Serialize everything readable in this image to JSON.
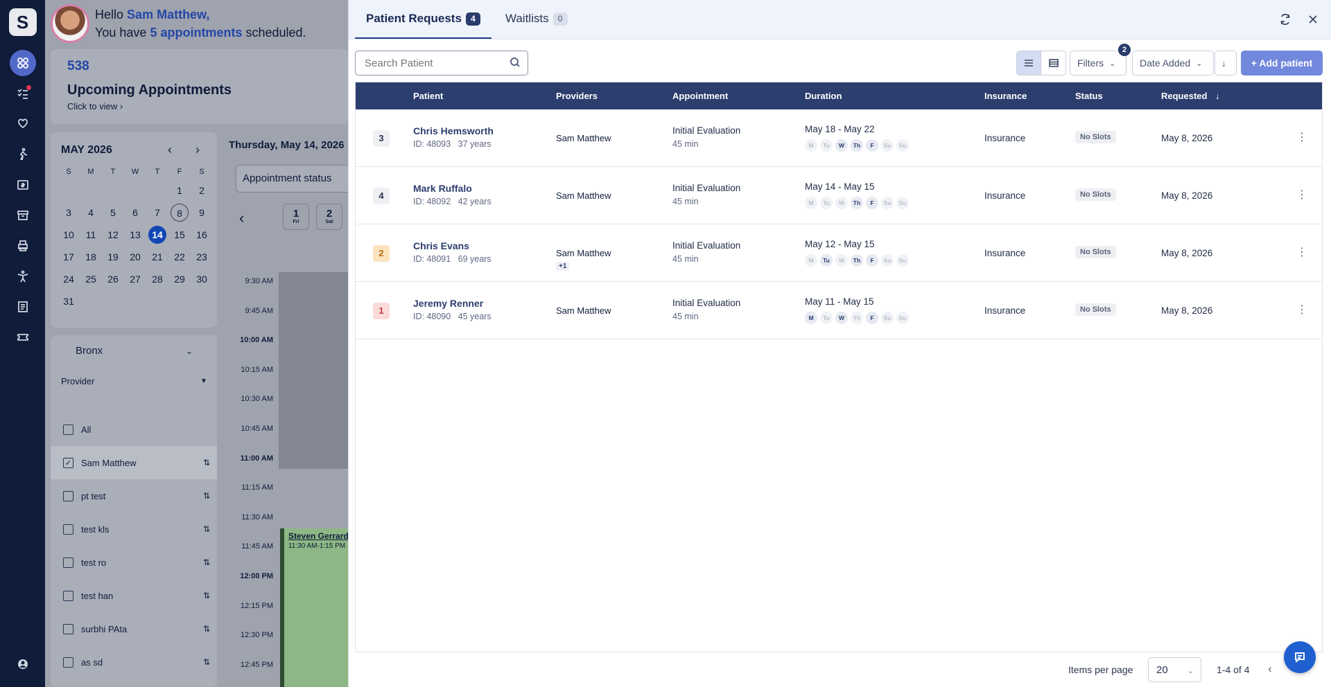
{
  "rail": {
    "logo": "S",
    "icons": [
      "apps-icon",
      "checklist-icon",
      "heart-hand-icon",
      "walking-icon",
      "billing-icon",
      "archive-icon",
      "printer-icon",
      "person-stretch-icon",
      "document-icon",
      "ticket-icon"
    ],
    "bottom_icon": "user-account-icon"
  },
  "greeting": {
    "hello": "Hello",
    "user": "Sam Matthew,",
    "line2_prefix": "You have",
    "appointments": "5 appointments",
    "line2_suffix": "scheduled."
  },
  "upcoming": {
    "count": "538",
    "title": "Upcoming Appointments",
    "link": "Click to view ›"
  },
  "mini_calendar": {
    "month": "MAY 2026",
    "prev": "‹",
    "next": "›",
    "weekdays": [
      "S",
      "M",
      "T",
      "W",
      "T",
      "F",
      "S"
    ],
    "days": [
      "",
      "",
      "",
      "",
      "",
      "1",
      "2",
      "3",
      "4",
      "5",
      "6",
      "7",
      "8",
      "9",
      "10",
      "11",
      "12",
      "13",
      "14",
      "15",
      "16",
      "17",
      "18",
      "19",
      "20",
      "21",
      "22",
      "23",
      "24",
      "25",
      "26",
      "27",
      "28",
      "29",
      "30",
      "31"
    ],
    "selected": "14",
    "circled": "8"
  },
  "location": "Bronx",
  "provider_label": "Provider",
  "providers": [
    {
      "name": "All",
      "checked": false
    },
    {
      "name": "Sam Matthew",
      "checked": true
    },
    {
      "name": "pt test",
      "checked": false
    },
    {
      "name": "test kls",
      "checked": false
    },
    {
      "name": "test ro",
      "checked": false
    },
    {
      "name": "test han",
      "checked": false
    },
    {
      "name": "surbhi PAta",
      "checked": false
    },
    {
      "name": "as sd",
      "checked": false
    }
  ],
  "day_view": {
    "date": "Thursday, May 14, 2026",
    "status_filter": "Appointment status",
    "chips": [
      {
        "num": "1",
        "day": "Fri"
      },
      {
        "num": "2",
        "day": "Sat"
      }
    ],
    "times": [
      "9:30 AM",
      "9:45 AM",
      "10:00 AM",
      "10:15 AM",
      "10:30 AM",
      "10:45 AM",
      "11:00 AM",
      "11:15 AM",
      "11:30 AM",
      "11:45 AM",
      "12:00 PM",
      "12:15 PM",
      "12:30 PM",
      "12:45 PM"
    ],
    "bold_times": [
      "10:00 AM",
      "11:00 AM",
      "12:00 PM"
    ],
    "event": {
      "name": "Steven Gerrard",
      "time": "11:30 AM-1:15 PM"
    }
  },
  "panel": {
    "tabs": [
      {
        "label": "Patient Requests",
        "count": "4",
        "active": true
      },
      {
        "label": "Waitlists",
        "count": "0",
        "active": false
      }
    ],
    "search_placeholder": "Search Patient",
    "filters_label": "Filters",
    "filters_count": "2",
    "sort_label": "Date Added",
    "add_label": "+ Add patient",
    "columns": [
      "Patient",
      "Providers",
      "Appointment",
      "Duration",
      "Insurance",
      "Status",
      "Requested"
    ],
    "rows": [
      {
        "priority": "3",
        "tone": "grey",
        "name": "Chris Hemsworth",
        "id": "ID: 48093",
        "age": "37 years",
        "provider": "Sam Matthew",
        "extra": "",
        "appt": "Initial Evaluation",
        "length": "45 min",
        "range": "May 18 - May 22",
        "days_on": [
          2,
          3,
          4
        ],
        "insurance": "Insurance",
        "status": "No Slots",
        "requested": "May 8, 2026"
      },
      {
        "priority": "4",
        "tone": "grey",
        "name": "Mark Ruffalo",
        "id": "ID: 48092",
        "age": "42 years",
        "provider": "Sam Matthew",
        "extra": "",
        "appt": "Initial Evaluation",
        "length": "45 min",
        "range": "May 14 - May 15",
        "days_on": [
          3,
          4
        ],
        "insurance": "Insurance",
        "status": "No Slots",
        "requested": "May 8, 2026"
      },
      {
        "priority": "2",
        "tone": "orange",
        "name": "Chris Evans",
        "id": "ID: 48091",
        "age": "69 years",
        "provider": "Sam Matthew",
        "extra": "+1",
        "appt": "Initial Evaluation",
        "length": "45 min",
        "range": "May 12 - May 15",
        "days_on": [
          1,
          3,
          4
        ],
        "insurance": "Insurance",
        "status": "No Slots",
        "requested": "May 8, 2026"
      },
      {
        "priority": "1",
        "tone": "red",
        "name": "Jeremy Renner",
        "id": "ID: 48090",
        "age": "45 years",
        "provider": "Sam Matthew",
        "extra": "",
        "appt": "Initial Evaluation",
        "length": "45 min",
        "range": "May 11 - May 15",
        "days_on": [
          0,
          2,
          4
        ],
        "insurance": "Insurance",
        "status": "No Slots",
        "requested": "May 8, 2026"
      }
    ],
    "weekday_chips": [
      "M",
      "Tu",
      "W",
      "Th",
      "F",
      "Sa",
      "Su"
    ],
    "footer": {
      "items_label": "Items per page",
      "per_page": "20",
      "range": "1-4 of 4"
    }
  }
}
